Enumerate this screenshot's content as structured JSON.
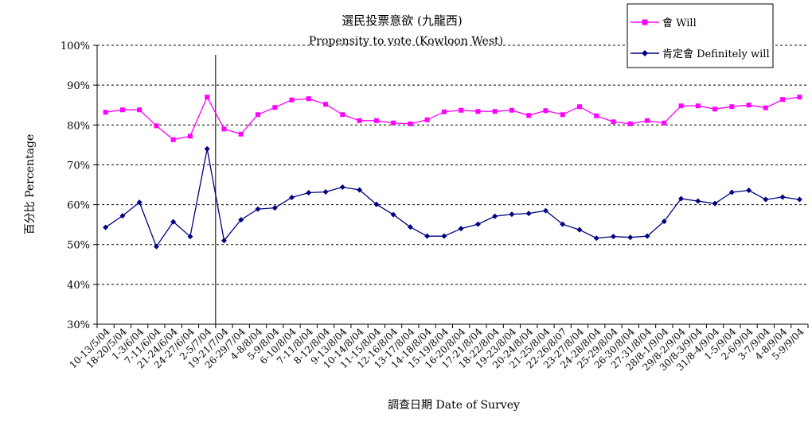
{
  "chart_data": {
    "type": "line",
    "title": "選民投票意欲 (九龍西)",
    "subtitle": "Propensity to vote (Kowloon West)",
    "xlabel": "調查日期 Date of Survey",
    "ylabel": "百分比 Percentage",
    "ylim": [
      30,
      100
    ],
    "yticks": [
      "30%",
      "40%",
      "50%",
      "60%",
      "70%",
      "80%",
      "90%",
      "100%"
    ],
    "grid": "horizontal-dashed",
    "legend_position": "top-right",
    "categories": [
      "10-13/5/04",
      "18-20/5/04",
      "1-3/6/04",
      "7-11/6/04",
      "21-24/6/04",
      "24-27/6/04",
      "2-5/7/04",
      "19-21/7/04",
      "26-29/7/04",
      "4-8/8/04",
      "5-9/8/04",
      "6-10/8/04",
      "7-11/8/04",
      "8-12/8/04",
      "9-13/8/04",
      "10-14/8/04",
      "11-15/8/04",
      "12-16/8/04",
      "13-17/8/04",
      "14-18/8/04",
      "15-19/8/04",
      "16-20/8/04",
      "17-21/8/04",
      "18-22/8/04",
      "19-23/8/04",
      "20-24/8/04",
      "21-25/8/04",
      "22-26/8/07",
      "23-27/8/04",
      "24-28/8/04",
      "25-29/8/04",
      "26-30/8/04",
      "27-31/8/04",
      "28/8-1/9/04",
      "29/8-2/9/04",
      "30/8-3/9/04",
      "31/8-4/9/04",
      "1-5/9/04",
      "2-6/9/04",
      "3-7/9/04",
      "4-8/9/04",
      "5-9/9/04"
    ],
    "divider_after_index": 6,
    "series": [
      {
        "name": "會 Will",
        "color": "#ff00ff",
        "marker": "square",
        "values": [
          83.2,
          83.8,
          83.8,
          79.8,
          76.3,
          77.2,
          87.0,
          79.0,
          77.7,
          82.6,
          84.4,
          86.3,
          86.6,
          85.2,
          82.6,
          81.1,
          81.1,
          80.5,
          80.3,
          81.3,
          83.3,
          83.7,
          83.4,
          83.4,
          83.7,
          82.4,
          83.6,
          82.6,
          84.6,
          82.3,
          80.8,
          80.3,
          81.1,
          80.5,
          84.8,
          84.8,
          84.0,
          84.6,
          85.0,
          84.3,
          86.4,
          87.0
        ]
      },
      {
        "name": "肯定會 Definitely will",
        "color": "#000080",
        "marker": "diamond",
        "values": [
          54.3,
          57.2,
          60.6,
          49.5,
          55.7,
          52.0,
          74.0,
          51.0,
          56.2,
          58.9,
          59.2,
          61.8,
          63.0,
          63.2,
          64.4,
          63.7,
          60.1,
          57.5,
          54.4,
          52.1,
          52.1,
          54.0,
          55.1,
          57.1,
          57.6,
          57.8,
          58.5,
          55.1,
          53.7,
          51.6,
          52.0,
          51.8,
          52.1,
          55.8,
          61.5,
          60.9,
          60.3,
          63.1,
          63.6,
          61.3,
          61.9,
          61.3
        ]
      }
    ]
  }
}
